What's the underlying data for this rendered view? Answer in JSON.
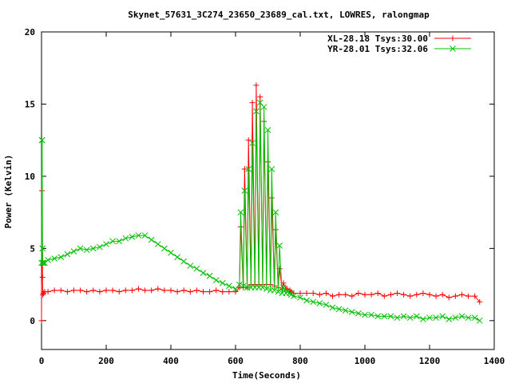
{
  "chart_data": {
    "type": "line",
    "title": "Skynet_57631_3C274_23650_23689_cal.txt, LOWRES, ralongmap",
    "xlabel": "Time(Seconds)",
    "ylabel": "Power (Kelvin)",
    "xlim": [
      0,
      1400
    ],
    "ylim": [
      -2,
      20
    ],
    "xticks": [
      0,
      200,
      400,
      600,
      800,
      1000,
      1200,
      1400
    ],
    "yticks": [
      0,
      5,
      10,
      15,
      20
    ],
    "grid": false,
    "legend_position": "top-right",
    "series": [
      {
        "name": "XL-28.18 Tsys:30.00",
        "color": "#ff0000",
        "marker": "plus",
        "x": [
          0,
          1,
          2,
          3,
          4,
          6,
          10,
          20,
          40,
          60,
          80,
          100,
          120,
          140,
          160,
          180,
          200,
          220,
          240,
          260,
          280,
          300,
          320,
          340,
          360,
          380,
          400,
          420,
          440,
          460,
          480,
          500,
          520,
          540,
          560,
          580,
          600,
          612,
          616,
          624,
          628,
          636,
          640,
          648,
          652,
          660,
          664,
          672,
          676,
          684,
          688,
          696,
          700,
          708,
          712,
          720,
          724,
          732,
          736,
          744,
          748,
          756,
          760,
          768,
          772,
          780,
          800,
          820,
          840,
          860,
          880,
          900,
          920,
          940,
          960,
          980,
          1000,
          1020,
          1040,
          1060,
          1080,
          1100,
          1120,
          1140,
          1160,
          1180,
          1200,
          1220,
          1240,
          1260,
          1280,
          1300,
          1320,
          1340,
          1355
        ],
        "y": [
          0,
          9,
          9,
          3,
          1.8,
          1.9,
          2.0,
          2.0,
          2.1,
          2.1,
          2.0,
          2.1,
          2.1,
          2.0,
          2.1,
          2.0,
          2.1,
          2.1,
          2.0,
          2.1,
          2.1,
          2.2,
          2.1,
          2.1,
          2.2,
          2.1,
          2.1,
          2.0,
          2.1,
          2.0,
          2.1,
          2.0,
          2.0,
          2.1,
          2.0,
          2.0,
          2.0,
          2.3,
          6.5,
          2.3,
          10.5,
          2.3,
          12.5,
          2.5,
          15.1,
          2.5,
          16.3,
          2.5,
          15.5,
          2.5,
          13.8,
          2.5,
          11.0,
          2.5,
          8.5,
          2.4,
          6.3,
          2.3,
          3.6,
          2.2,
          2.6,
          2.2,
          2.2,
          2.1,
          2.0,
          1.9,
          1.9,
          1.9,
          1.9,
          1.8,
          1.9,
          1.7,
          1.8,
          1.8,
          1.7,
          1.9,
          1.8,
          1.8,
          1.9,
          1.7,
          1.8,
          1.9,
          1.8,
          1.7,
          1.8,
          1.9,
          1.8,
          1.7,
          1.8,
          1.6,
          1.7,
          1.8,
          1.7,
          1.7,
          1.3
        ]
      },
      {
        "name": "YR-28.01 Tsys:32.06",
        "color": "#00c000",
        "marker": "cross",
        "x": [
          0,
          1,
          2,
          3,
          4,
          6,
          10,
          20,
          40,
          60,
          80,
          100,
          120,
          140,
          160,
          180,
          200,
          220,
          240,
          260,
          280,
          300,
          320,
          340,
          360,
          380,
          400,
          420,
          440,
          460,
          480,
          500,
          520,
          540,
          560,
          580,
          600,
          612,
          616,
          624,
          628,
          636,
          640,
          648,
          652,
          660,
          664,
          672,
          676,
          684,
          688,
          696,
          700,
          708,
          712,
          720,
          724,
          732,
          736,
          744,
          748,
          756,
          760,
          768,
          772,
          780,
          800,
          820,
          840,
          860,
          880,
          900,
          920,
          940,
          960,
          980,
          1000,
          1020,
          1040,
          1060,
          1080,
          1100,
          1120,
          1140,
          1160,
          1180,
          1200,
          1220,
          1240,
          1260,
          1280,
          1300,
          1320,
          1340,
          1355
        ],
        "y": [
          4,
          12.5,
          12.5,
          5,
          4.0,
          4.0,
          4.0,
          4.2,
          4.3,
          4.4,
          4.6,
          4.8,
          5.0,
          4.9,
          5.0,
          5.1,
          5.3,
          5.5,
          5.5,
          5.7,
          5.8,
          5.9,
          5.9,
          5.6,
          5.3,
          5.0,
          4.7,
          4.4,
          4.1,
          3.8,
          3.6,
          3.3,
          3.1,
          2.8,
          2.6,
          2.4,
          2.2,
          2.5,
          7.5,
          2.4,
          9.0,
          2.3,
          10.5,
          2.3,
          12.3,
          2.3,
          14.5,
          2.3,
          15.1,
          2.3,
          14.8,
          2.2,
          13.2,
          2.1,
          10.5,
          2.1,
          7.5,
          2.0,
          5.2,
          1.9,
          2.3,
          1.9,
          2.0,
          1.9,
          1.8,
          1.7,
          1.6,
          1.4,
          1.3,
          1.2,
          1.1,
          0.9,
          0.8,
          0.7,
          0.6,
          0.5,
          0.4,
          0.4,
          0.3,
          0.3,
          0.3,
          0.2,
          0.3,
          0.2,
          0.3,
          0.1,
          0.2,
          0.2,
          0.3,
          0.1,
          0.2,
          0.3,
          0.2,
          0.2,
          0.0
        ]
      }
    ]
  }
}
